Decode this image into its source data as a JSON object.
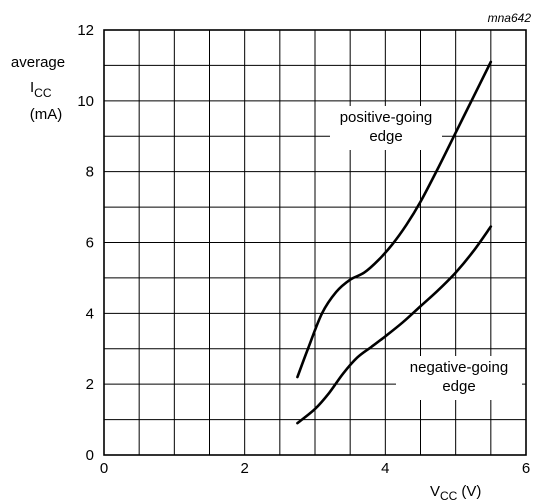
{
  "chart_data": {
    "type": "line",
    "figure_code": "mna642",
    "xlabel": {
      "main": "V",
      "sub": "CC",
      "unit": "(V)"
    },
    "ylabel": {
      "line1": "average",
      "main": "I",
      "sub": "CC",
      "unit": "(mA)"
    },
    "xlim": [
      0,
      6
    ],
    "ylim": [
      0,
      12
    ],
    "x_ticks": [
      "0",
      "2",
      "4",
      "6"
    ],
    "y_ticks": [
      "0",
      "2",
      "4",
      "6",
      "8",
      "10",
      "12"
    ],
    "grid": true,
    "series": [
      {
        "name": "positive-going edge",
        "label_lines": [
          "positive-going",
          "edge"
        ],
        "x": [
          2.75,
          2.9,
          3.1,
          3.3,
          3.5,
          3.7,
          3.9,
          4.1,
          4.3,
          4.5,
          4.75,
          5.0,
          5.25,
          5.5
        ],
        "y": [
          2.2,
          3.0,
          4.0,
          4.6,
          4.95,
          5.15,
          5.5,
          5.95,
          6.5,
          7.15,
          8.1,
          9.1,
          10.1,
          11.1
        ]
      },
      {
        "name": "negative-going edge",
        "label_lines": [
          "negative-going",
          "edge"
        ],
        "x": [
          2.75,
          3.0,
          3.2,
          3.4,
          3.6,
          3.8,
          4.0,
          4.25,
          4.5,
          4.75,
          5.0,
          5.25,
          5.5
        ],
        "y": [
          0.9,
          1.3,
          1.75,
          2.3,
          2.75,
          3.05,
          3.35,
          3.75,
          4.2,
          4.65,
          5.15,
          5.75,
          6.45
        ]
      }
    ]
  }
}
